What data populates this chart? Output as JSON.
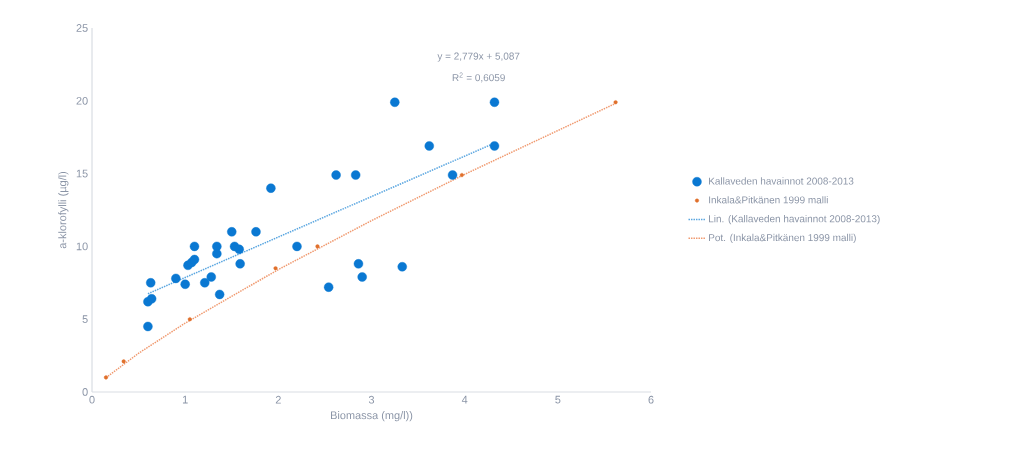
{
  "chart_data": {
    "type": "scatter",
    "xlabel": "Biomassa (mg/l))",
    "ylabel": "a-klorofylli (µg/l)",
    "xlim": [
      0,
      6
    ],
    "xticks": [
      0,
      1,
      2,
      3,
      4,
      5,
      6
    ],
    "ylim": [
      0,
      25
    ],
    "yticks": [
      0,
      5,
      10,
      15,
      20,
      25
    ],
    "grid": false,
    "legend": "right",
    "annotations": [
      "y = 2,779x + 5,087",
      "R$^{2}$ = 0,6059"
    ],
    "series": [
      {
        "name": "Kallaveden havainnot 2008-2013",
        "marker": "circle",
        "color": "#0a78d2",
        "x": [
          0.6,
          0.63,
          0.6,
          0.64,
          0.9,
          1.0,
          1.1,
          1.03,
          1.07,
          1.1,
          1.21,
          1.28,
          1.34,
          1.34,
          1.37,
          1.5,
          1.53,
          1.58,
          1.59,
          1.76,
          1.92,
          2.2,
          2.54,
          2.62,
          2.83,
          2.86,
          2.9,
          3.25,
          3.33,
          3.62,
          3.87,
          4.32,
          4.32
        ],
        "values": [
          4.5,
          7.5,
          6.2,
          6.4,
          7.8,
          7.4,
          10.0,
          8.7,
          8.9,
          9.1,
          7.5,
          7.9,
          10.0,
          9.5,
          6.7,
          11.0,
          10.0,
          9.8,
          8.8,
          11.0,
          14.0,
          10.0,
          7.2,
          14.9,
          14.9,
          8.8,
          7.9,
          19.9,
          8.6,
          16.9,
          14.9,
          19.9,
          16.9
        ]
      },
      {
        "name": "Inkala&Pitkänen 1999 malli",
        "marker": "circle",
        "color": "#e0702c",
        "x": [
          0.15,
          0.34,
          1.05,
          1.97,
          2.42,
          3.97,
          5.62
        ],
        "values": [
          1.0,
          2.1,
          5.0,
          8.5,
          10.0,
          14.9,
          19.9
        ]
      },
      {
        "name": "Lin. (Kallaveden havainnot 2008-2013)",
        "type": "line",
        "marker": "none",
        "line_style": "dotted",
        "color": "#5aa6e0",
        "x": [
          0.6,
          4.32
        ],
        "values": [
          6.75,
          17.09
        ]
      },
      {
        "name": "Pot. (Inkala&Pitkänen 1999 malli)",
        "type": "line",
        "marker": "none",
        "line_style": "dotted",
        "color": "#f09a70",
        "x": [
          0.15,
          0.5,
          1,
          2,
          3,
          4,
          5.62
        ],
        "values": [
          0.98,
          2.66,
          4.73,
          8.41,
          11.77,
          14.95,
          19.82
        ]
      }
    ]
  }
}
